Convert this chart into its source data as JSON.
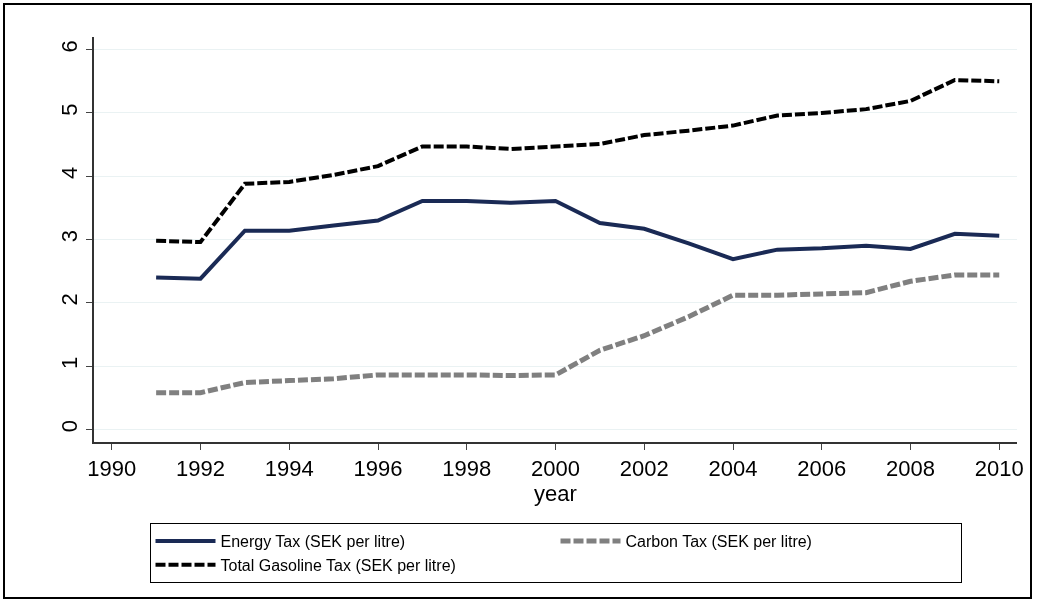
{
  "chart_data": {
    "type": "line",
    "xlabel": "year",
    "x": [
      1991,
      1992,
      1993,
      1994,
      1995,
      1996,
      1997,
      1998,
      1999,
      2000,
      2001,
      2002,
      2003,
      2004,
      2005,
      2006,
      2007,
      2008,
      2009,
      2010
    ],
    "series": [
      {
        "name": "Energy Tax (SEK per litre)",
        "color": "#1a2a55",
        "line_style": "solid",
        "values": [
          2.4,
          2.38,
          3.14,
          3.14,
          3.22,
          3.3,
          3.61,
          3.61,
          3.58,
          3.61,
          3.26,
          3.17,
          2.94,
          2.69,
          2.84,
          2.86,
          2.9,
          2.85,
          3.09,
          3.06
        ]
      },
      {
        "name": "Carbon Tax (SEK per litre)",
        "color": "#808080",
        "line_style": "dashed",
        "values": [
          0.58,
          0.58,
          0.74,
          0.77,
          0.8,
          0.86,
          0.86,
          0.86,
          0.85,
          0.86,
          1.25,
          1.48,
          1.78,
          2.12,
          2.12,
          2.14,
          2.16,
          2.34,
          2.44,
          2.44
        ]
      },
      {
        "name": "Total Gasoline Tax (SEK per litre)",
        "color": "#000000",
        "line_style": "dashed",
        "values": [
          2.98,
          2.96,
          3.88,
          3.91,
          4.02,
          4.16,
          4.47,
          4.47,
          4.43,
          4.47,
          4.51,
          4.65,
          4.72,
          4.8,
          4.96,
          5.0,
          5.06,
          5.19,
          5.52,
          5.5
        ]
      }
    ],
    "xlim": [
      1989.6,
      2010.4
    ],
    "xticks": [
      1990,
      1992,
      1994,
      1996,
      1998,
      2000,
      2002,
      2004,
      2006,
      2008,
      2010
    ],
    "ylim": [
      -0.2,
      6.2
    ],
    "yticks": [
      0,
      1,
      2,
      3,
      4,
      5,
      6
    ],
    "grid": "y",
    "legend": "bottom",
    "marker": "none"
  }
}
